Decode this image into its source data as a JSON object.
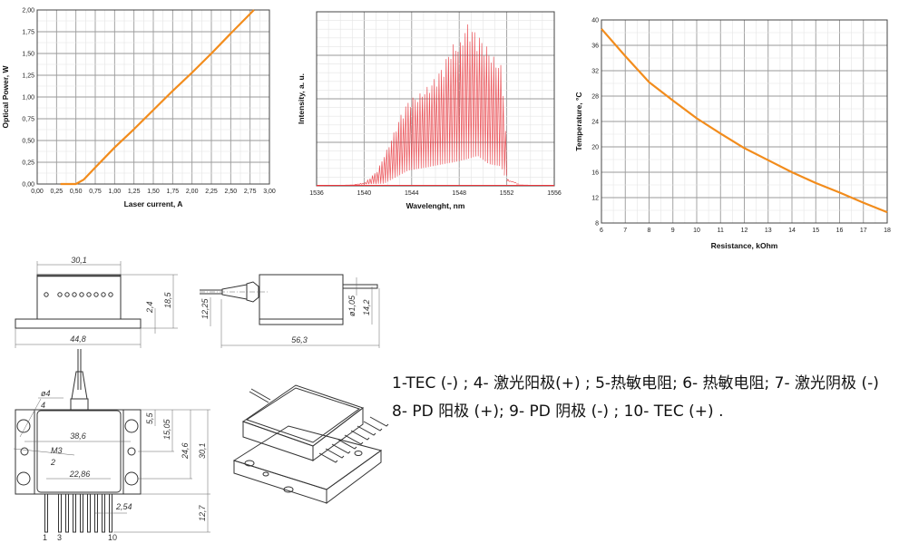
{
  "chart_data": [
    {
      "type": "line",
      "xlabel": "Laser current, A",
      "ylabel": "Optical Power, W",
      "xlim": [
        0,
        3
      ],
      "ylim": [
        0,
        2
      ],
      "xticks": [
        "0,00",
        "0,25",
        "0,50",
        "0,75",
        "1,00",
        "1,25",
        "1,50",
        "1,75",
        "2,00",
        "2,25",
        "2,50",
        "2,75",
        "3,00"
      ],
      "yticks": [
        "0,00",
        "0,25",
        "0,50",
        "0,75",
        "1,00",
        "1,25",
        "1,50",
        "1,75",
        "2,00"
      ],
      "grid": true,
      "color": "#f28c1c",
      "x": [
        0.3,
        0.5,
        0.6,
        0.75,
        1.0,
        1.25,
        1.5,
        1.75,
        2.0,
        2.25,
        2.5,
        2.8
      ],
      "y": [
        0,
        0,
        0.05,
        0.19,
        0.42,
        0.63,
        0.85,
        1.07,
        1.28,
        1.5,
        1.73,
        2.0
      ]
    },
    {
      "type": "area",
      "xlabel": "Wavelenght, nm",
      "ylabel": "Intensity, a. u.",
      "xlim": [
        1536,
        1556
      ],
      "ylim": [
        0,
        4
      ],
      "xticks": [
        "1536",
        "1540",
        "1544",
        "1548",
        "1552",
        "1556"
      ],
      "grid": true,
      "color": "#e8333a",
      "mode_spacing_nm": 0.2,
      "envelope_upper": {
        "x": [
          1536,
          1539,
          1540,
          1541,
          1542,
          1543,
          1543.7,
          1544.5,
          1545.5,
          1546.5,
          1547.3,
          1548,
          1548.5,
          1549.3,
          1550,
          1550.7,
          1551.5,
          1551.8,
          1552,
          1553,
          1556
        ],
        "y": [
          0,
          0.02,
          0.08,
          0.35,
          0.95,
          1.65,
          2.0,
          2.1,
          2.35,
          2.75,
          3.25,
          3.3,
          3.75,
          3.55,
          3.3,
          3.0,
          2.75,
          1.3,
          0.15,
          0.02,
          0
        ]
      },
      "envelope_lower": {
        "x": [
          1536,
          1541.5,
          1542.5,
          1543.5,
          1545,
          1546.5,
          1547.5,
          1548.3,
          1549.5,
          1550.5,
          1551.5,
          1552,
          1556
        ],
        "y": [
          0,
          0.05,
          0.2,
          0.35,
          0.42,
          0.5,
          0.55,
          0.6,
          0.7,
          0.5,
          0.45,
          0.1,
          0
        ]
      }
    },
    {
      "type": "line",
      "xlabel": "Resistance, kOhm",
      "ylabel": "Temperature, °C",
      "xlim": [
        6,
        18
      ],
      "ylim": [
        8,
        40
      ],
      "xticks": [
        "6",
        "7",
        "8",
        "9",
        "10",
        "11",
        "12",
        "13",
        "14",
        "15",
        "16",
        "17",
        "18"
      ],
      "yticks": [
        "8",
        "12",
        "16",
        "20",
        "24",
        "28",
        "32",
        "36",
        "40"
      ],
      "grid": true,
      "color": "#f28c1c",
      "x": [
        6,
        7,
        8,
        9,
        10,
        11,
        12,
        13,
        14,
        15,
        16,
        17,
        18
      ],
      "y": [
        38.6,
        34.3,
        30.2,
        27.3,
        24.5,
        22.1,
        19.8,
        17.9,
        16.0,
        14.3,
        12.8,
        11.2,
        9.7
      ]
    }
  ],
  "drawings": {
    "front_view": {
      "width": "30,1",
      "flange_width": "44,8",
      "flange_h": "2,4",
      "height": "18,5"
    },
    "side_view": {
      "fiber_height": "12,25",
      "length": "56,3",
      "pin_dia": "ø1,05",
      "pin_height": "14,2"
    },
    "top_view": {
      "hole_dia": "ø4",
      "hole_count": "4",
      "body_width": "38,6",
      "thread": "M3",
      "thread_count": "2",
      "pin_span": "22,86",
      "d1": "5,5",
      "d2": "15,05",
      "d3": "24,6",
      "d4": "30,1",
      "pin_length": "12,7",
      "pin_pitch": "2,54",
      "pin_labels": [
        "1",
        "3",
        "10"
      ]
    }
  },
  "pinout": {
    "line1": "1-TEC (-) ;  4- 激光阳极(+) ; 5-热敏电阻; 6- 热敏电阻; 7- 激光阴极 (-)",
    "line2": "8- PD 阳极 (+);  9- PD 阴极 (-) ; 10- TEC (+) ."
  }
}
